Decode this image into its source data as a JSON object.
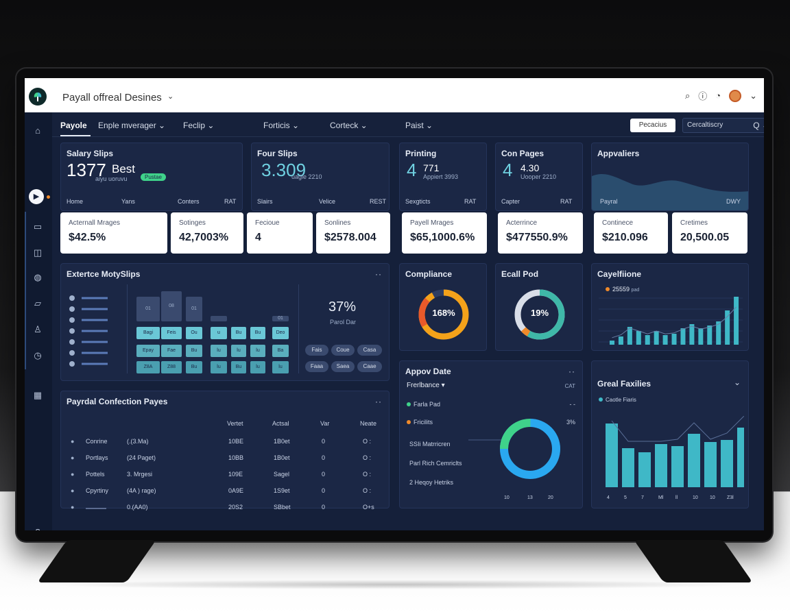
{
  "app": {
    "title": "Payall offreal Desines",
    "title_caret": "⌄",
    "icons": [
      "search-icon",
      "info-icon",
      "clock-icon",
      "avatar",
      "chevron-down-icon"
    ]
  },
  "nav": {
    "items": [
      "Payole",
      "Enple mverager ⌄",
      "Feclip ⌄",
      "Forticis ⌄",
      "Corteck ⌄",
      "Paist ⌄"
    ],
    "button": "Pecacius",
    "search_value": "Cercaltiscry",
    "search_icon": "Q ⌄"
  },
  "cards": {
    "salary": {
      "title": "Salary Slips",
      "num": "1377",
      "word": "Best",
      "sub": "aiyu  uoruvu",
      "badge": "Pustae",
      "cols": [
        "Home",
        "Yans",
        "Conters",
        "RAT"
      ]
    },
    "four": {
      "title": "Four Slips",
      "num": "3.309",
      "sub": "uagle 2210",
      "cols": [
        "Slairs",
        "Velice",
        "REST"
      ]
    },
    "printing": {
      "title": "Printing",
      "num": "4",
      "small": "771",
      "sub": "Appiert 3993",
      "cols": [
        "Sexgticts",
        "RAT"
      ]
    },
    "con": {
      "title": "Con Pages",
      "num": "4",
      "small": "4.30",
      "sub": "Uooper 2210",
      "cols": [
        "Capter",
        "RAT"
      ]
    },
    "appr": {
      "title": "Appvaliers",
      "cols": [
        "Payral",
        "DWY"
      ]
    }
  },
  "kpis": [
    {
      "label": "Acternall Mrages",
      "value": "$42.5%"
    },
    {
      "label": "Sotinges",
      "value": "42,7003%"
    },
    {
      "label": "Fecioue",
      "value": "4"
    },
    {
      "label": "Sonlines",
      "value": "$2578.004"
    },
    {
      "label": "Payell Mrages",
      "value": "$65,1000.6%"
    },
    {
      "label": "Acterrince",
      "value": "$477550.9%"
    },
    {
      "label": "Continece",
      "value": "$210.096"
    },
    {
      "label": "Cretimes",
      "value": "20,500.05"
    }
  ],
  "extent": {
    "title": "Extertce MotySlips",
    "dots": "··",
    "pct": "37%",
    "pct_sub": "Parol Dar",
    "sq_top": [
      "01",
      "08",
      "01",
      "",
      "",
      "",
      "01"
    ],
    "sq_mid": [
      "Bagi",
      "Feis",
      "Ou",
      "u",
      "Bu",
      "Bu",
      "Deo"
    ],
    "sq_r3": [
      "Epay",
      "Fae",
      "Bu",
      "lu",
      "lu",
      "lu",
      "Ba"
    ],
    "sq_r4": [
      "Z8A",
      "Z88",
      "Bu",
      "lu",
      "Bu",
      "lu",
      "lu"
    ],
    "chips_a": [
      "Fais",
      "Coue",
      "Casa"
    ],
    "chips_b": [
      "Faaa",
      "Saea",
      "Caae"
    ]
  },
  "compliance": {
    "title": "Compliance",
    "value": "168%",
    "pct_ring": 0.92
  },
  "ecall": {
    "title": "Ecall Pod",
    "value": "19%",
    "pct_ring": 0.62
  },
  "cayf": {
    "title": "Cayelfiione",
    "legend": "25559",
    "legend_unit": "pad",
    "bars": [
      6,
      12,
      26,
      20,
      14,
      20,
      14,
      16,
      24,
      30,
      24,
      28,
      34,
      50,
      70
    ]
  },
  "payroll": {
    "title": "Payrdal Confection Payes",
    "dots": "··",
    "headers": [
      "Vertet",
      "Actsal",
      "Var",
      "Neate"
    ],
    "rows": [
      [
        "Conrine",
        "(.(3.Ma)",
        "10BE",
        "1B0et",
        "0",
        "O :"
      ],
      [
        "Portlays",
        "(24 Paget)",
        "10BB",
        "1B0et",
        "0",
        "O :"
      ],
      [
        "Pottels",
        "3. Mrgesi",
        "109E",
        "Sagel",
        "0",
        "O :"
      ],
      [
        "Cpyrtiny",
        "(4A ) rage)",
        "0A9E",
        "1S9et",
        "0",
        "O :"
      ],
      [
        "",
        "0.(AA0)",
        "20S2",
        "SBbet",
        "0",
        "O+s"
      ]
    ]
  },
  "approv": {
    "title": "Appov Date",
    "dots": "··",
    "dropdown": "Frerlbance",
    "dropdown_right": "CAT",
    "rows": [
      "Farla Pad",
      "Fricilits",
      "SSIi Matrricren",
      "Parl Rich Cemriclts",
      "2 Heqoy Hetriks"
    ],
    "row_r": [
      "- -",
      "3%",
      "",
      "",
      ""
    ],
    "donut_pct": 0.92,
    "xticks": [
      "10",
      "13",
      "20"
    ]
  },
  "great": {
    "title": "Greal Faxilies",
    "dots": "⌄",
    "legend": "Caotle Fiaris",
    "bars": [
      62,
      38,
      34,
      42,
      40,
      52,
      44,
      46,
      58,
      74
    ],
    "xticks": [
      "4",
      "5",
      "7",
      "Ml",
      "ll",
      "10",
      "10",
      "Z3l"
    ]
  },
  "sidebar": {
    "icons": [
      "megaphone-icon",
      "play-icon",
      "clipboard-icon",
      "bus-icon",
      "globe-icon",
      "folder-icon",
      "user-icon",
      "timer-icon",
      "building-icon",
      "help-icon"
    ]
  },
  "colors": {
    "bg": "#15203a",
    "card": "#1b2745",
    "accent": "#3fb8c7",
    "orange": "#f08a2a",
    "green": "#3fd28a"
  }
}
